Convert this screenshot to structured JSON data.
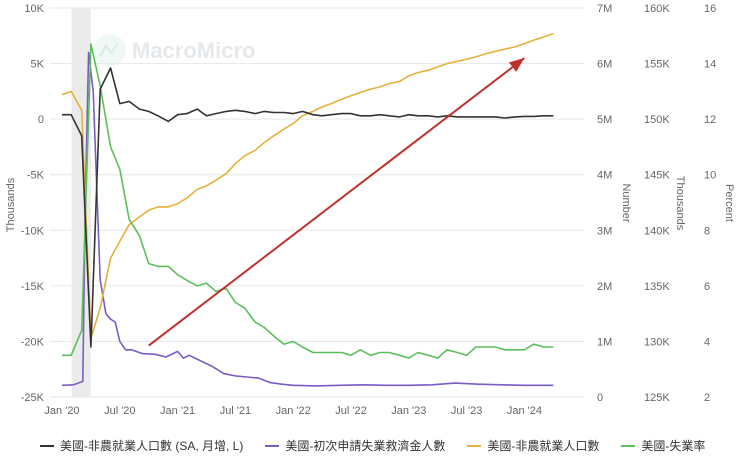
{
  "chart_data": {
    "type": "line",
    "watermark": "MacroMicro",
    "x_ticks": [
      "Jan '20",
      "Jul '20",
      "Jan '21",
      "Jul '21",
      "Jan '22",
      "Jul '22",
      "Jan '23",
      "Jul '23",
      "Jan '24"
    ],
    "shaded_period": {
      "start": "2020-02",
      "end": "2020-04"
    },
    "axes": {
      "y1": {
        "label": "Thousands",
        "ticks": [
          "10K",
          "5K",
          "0",
          "-5K",
          "-10K",
          "-15K",
          "-20K",
          "-25K"
        ],
        "range": [
          -25000,
          10000
        ]
      },
      "y2": {
        "label": "Number",
        "ticks": [
          "7M",
          "6M",
          "5M",
          "4M",
          "3M",
          "2M",
          "1M",
          "0"
        ],
        "range": [
          0,
          7000000
        ]
      },
      "y3": {
        "label": "Thousands",
        "ticks": [
          "160K",
          "155K",
          "150K",
          "145K",
          "140K",
          "135K",
          "130K",
          "125K"
        ],
        "range": [
          125000,
          160000
        ]
      },
      "y4": {
        "label": "Percent",
        "ticks": [
          "16",
          "14",
          "12",
          "10",
          "8",
          "6",
          "4",
          "2"
        ],
        "range": [
          2,
          16
        ]
      }
    },
    "series": [
      {
        "name": "美國-非農就業人口數 (SA, 月增, L)",
        "color": "#333333",
        "axis": "y1",
        "x": [
          2020.0,
          2020.08,
          2020.17,
          2020.25,
          2020.33,
          2020.42,
          2020.5,
          2020.58,
          2020.67,
          2020.75,
          2020.83,
          2020.92,
          2021.0,
          2021.08,
          2021.17,
          2021.25,
          2021.33,
          2021.42,
          2021.5,
          2021.58,
          2021.67,
          2021.75,
          2021.83,
          2021.92,
          2022.0,
          2022.08,
          2022.17,
          2022.25,
          2022.33,
          2022.42,
          2022.5,
          2022.58,
          2022.67,
          2022.75,
          2022.83,
          2022.92,
          2023.0,
          2023.08,
          2023.17,
          2023.25,
          2023.33,
          2023.42,
          2023.5,
          2023.58,
          2023.67,
          2023.75,
          2023.83,
          2023.92,
          2024.0,
          2024.08,
          2024.17,
          2024.25
        ],
        "y": [
          400,
          400,
          -1500,
          -20500,
          2700,
          4600,
          1400,
          1600,
          900,
          700,
          300,
          -200,
          400,
          500,
          900,
          300,
          500,
          700,
          800,
          700,
          500,
          700,
          600,
          600,
          500,
          700,
          400,
          300,
          400,
          500,
          500,
          300,
          300,
          400,
          300,
          200,
          400,
          300,
          300,
          200,
          300,
          200,
          200,
          200,
          200,
          200,
          100,
          200,
          250,
          250,
          300,
          300
        ]
      },
      {
        "name": "美國-初次申請失業救濟金人數",
        "color": "#7b5cc4",
        "axis": "y2",
        "x": [
          2020.0,
          2020.1,
          2020.18,
          2020.2,
          2020.23,
          2020.27,
          2020.3,
          2020.33,
          2020.38,
          2020.42,
          2020.46,
          2020.5,
          2020.55,
          2020.6,
          2020.7,
          2020.8,
          2020.9,
          2021.0,
          2021.05,
          2021.1,
          2021.2,
          2021.3,
          2021.4,
          2021.5,
          2021.6,
          2021.7,
          2021.8,
          2021.9,
          2022.0,
          2022.2,
          2022.4,
          2022.6,
          2022.8,
          2023.0,
          2023.2,
          2023.4,
          2023.6,
          2023.8,
          2024.0,
          2024.15,
          2024.25
        ],
        "y": [
          210000,
          220000,
          280000,
          3300000,
          6200000,
          5500000,
          3800000,
          2100000,
          1500000,
          1400000,
          1350000,
          1000000,
          850000,
          850000,
          780000,
          770000,
          720000,
          820000,
          700000,
          750000,
          650000,
          550000,
          420000,
          380000,
          360000,
          340000,
          260000,
          230000,
          210000,
          200000,
          210000,
          220000,
          210000,
          210000,
          220000,
          250000,
          230000,
          220000,
          210000,
          210000,
          210000
        ]
      },
      {
        "name": "美國-非農就業人口數",
        "color": "#e6b13a",
        "axis": "y3",
        "x": [
          2020.0,
          2020.08,
          2020.17,
          2020.25,
          2020.33,
          2020.42,
          2020.5,
          2020.58,
          2020.67,
          2020.75,
          2020.83,
          2020.92,
          2021.0,
          2021.08,
          2021.17,
          2021.25,
          2021.33,
          2021.42,
          2021.5,
          2021.58,
          2021.67,
          2021.75,
          2021.83,
          2021.92,
          2022.0,
          2022.08,
          2022.17,
          2022.25,
          2022.33,
          2022.42,
          2022.5,
          2022.58,
          2022.67,
          2022.75,
          2022.83,
          2022.92,
          2023.0,
          2023.08,
          2023.17,
          2023.25,
          2023.33,
          2023.42,
          2023.5,
          2023.58,
          2023.67,
          2023.75,
          2023.83,
          2023.92,
          2024.0,
          2024.08,
          2024.17,
          2024.25
        ],
        "y": [
          152200,
          152500,
          150800,
          130300,
          133000,
          137500,
          139000,
          140500,
          141200,
          141800,
          142100,
          142100,
          142400,
          142900,
          143700,
          144000,
          144500,
          145100,
          146000,
          146700,
          147200,
          147900,
          148500,
          149100,
          149600,
          150300,
          150700,
          151100,
          151400,
          151800,
          152100,
          152400,
          152700,
          152900,
          153200,
          153400,
          153900,
          154200,
          154400,
          154700,
          155000,
          155200,
          155400,
          155600,
          155900,
          156100,
          156300,
          156500,
          156800,
          157100,
          157400,
          157700
        ]
      },
      {
        "name": "美國-失業率",
        "color": "#5cbf5c",
        "axis": "y4",
        "x": [
          2020.0,
          2020.08,
          2020.17,
          2020.25,
          2020.33,
          2020.42,
          2020.5,
          2020.58,
          2020.67,
          2020.75,
          2020.83,
          2020.92,
          2021.0,
          2021.08,
          2021.17,
          2021.25,
          2021.33,
          2021.42,
          2021.5,
          2021.58,
          2021.67,
          2021.75,
          2021.83,
          2021.92,
          2022.0,
          2022.08,
          2022.17,
          2022.25,
          2022.33,
          2022.42,
          2022.5,
          2022.58,
          2022.67,
          2022.75,
          2022.83,
          2022.92,
          2023.0,
          2023.08,
          2023.17,
          2023.25,
          2023.33,
          2023.42,
          2023.5,
          2023.58,
          2023.67,
          2023.75,
          2023.83,
          2023.92,
          2024.0,
          2024.08,
          2024.17,
          2024.25
        ],
        "y": [
          3.5,
          3.5,
          4.4,
          14.7,
          13.2,
          11.0,
          10.2,
          8.4,
          7.8,
          6.8,
          6.7,
          6.7,
          6.4,
          6.2,
          6.0,
          6.1,
          5.8,
          5.9,
          5.4,
          5.2,
          4.7,
          4.5,
          4.2,
          3.9,
          4.0,
          3.8,
          3.6,
          3.6,
          3.6,
          3.6,
          3.5,
          3.7,
          3.5,
          3.6,
          3.6,
          3.5,
          3.4,
          3.6,
          3.5,
          3.4,
          3.7,
          3.6,
          3.5,
          3.8,
          3.8,
          3.8,
          3.7,
          3.7,
          3.7,
          3.9,
          3.8,
          3.8
        ]
      }
    ],
    "annotations": [
      {
        "type": "arrow",
        "color": "#c0312e",
        "from": {
          "x": 2020.75,
          "y4": 3.85
        },
        "to": {
          "x": 2024.0,
          "y4": 14.2
        }
      }
    ]
  }
}
